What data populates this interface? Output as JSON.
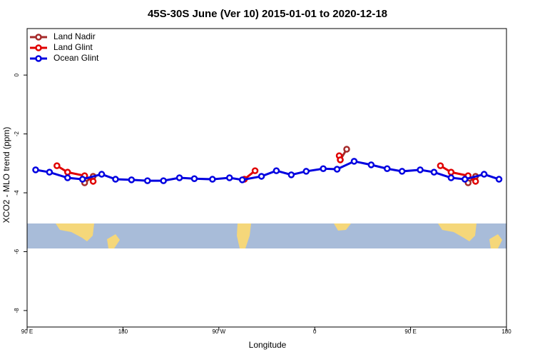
{
  "chart_data": {
    "type": "line",
    "title": "45S-30S June (Ver 10)   2015-01-01 to 2020-12-18",
    "x_label": "Longitude",
    "y_label": "XCO2 - MLO trend (ppm)",
    "xlim": [
      90,
      540
    ],
    "xticks": [
      {
        "value": 90,
        "label": "90 E"
      },
      {
        "value": 180,
        "label": "180"
      },
      {
        "value": 270,
        "label": "90 W"
      },
      {
        "value": 360,
        "label": "0"
      },
      {
        "value": 450,
        "label": "90 E"
      },
      {
        "value": 540,
        "label": "180"
      }
    ],
    "ylim": [
      -8.56,
      1.58
    ],
    "yticks": [
      0,
      -2,
      -4,
      -6,
      -8
    ],
    "legend": "top-left",
    "series": [
      {
        "name": "Land Nadir",
        "color": "#a52a2a",
        "x": [
          144,
          152,
          null,
          384,
          390,
          null,
          504,
          511
        ],
        "values": [
          -3.66,
          -3.44,
          null,
          -2.88,
          -2.52,
          null,
          -3.66,
          -3.44
        ]
      },
      {
        "name": "Land Glint",
        "color": "#e00000",
        "x": [
          118,
          128,
          144,
          152,
          null,
          294,
          304,
          null,
          383,
          384,
          null,
          478,
          488,
          504,
          511
        ],
        "values": [
          -3.08,
          -3.3,
          -3.42,
          -3.61,
          null,
          -3.54,
          -3.25,
          null,
          -2.74,
          -2.88,
          null,
          -3.08,
          -3.3,
          -3.42,
          -3.61
        ]
      },
      {
        "name": "Ocean Glint",
        "color": "#0000e0",
        "x": [
          98,
          111,
          128,
          142,
          160,
          173,
          188,
          203,
          218,
          233,
          247,
          264,
          280,
          292,
          310,
          324,
          338,
          352,
          368,
          381,
          397,
          413,
          428,
          442,
          459,
          472,
          488,
          501,
          519,
          533
        ],
        "values": [
          -3.22,
          -3.3,
          -3.49,
          -3.54,
          -3.37,
          -3.54,
          -3.56,
          -3.59,
          -3.59,
          -3.49,
          -3.52,
          -3.54,
          -3.49,
          -3.56,
          -3.44,
          -3.25,
          -3.39,
          -3.27,
          -3.18,
          -3.2,
          -2.93,
          -3.05,
          -3.18,
          -3.27,
          -3.22,
          -3.3,
          -3.49,
          -3.54,
          -3.37,
          -3.54
        ]
      }
    ]
  }
}
